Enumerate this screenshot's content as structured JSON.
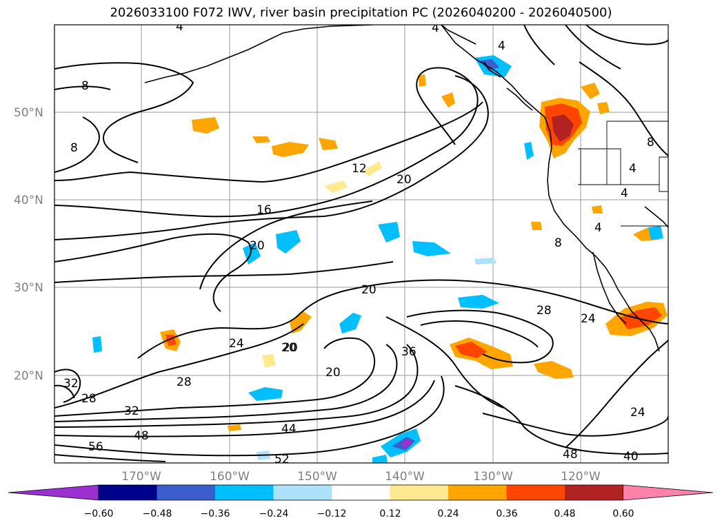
{
  "title": "2026033100 F072 IWV, river basin precipitation PC (2026040200 - 2026040500)",
  "lat_labels": [
    "50°N",
    "40°N",
    "30°N",
    "20°N"
  ],
  "lon_labels": [
    "170°W",
    "160°W",
    "150°W",
    "140°W",
    "130°W",
    "120°W"
  ],
  "colorbar": {
    "colors": [
      "#9b30d0",
      "#00008b",
      "#3a5fcd",
      "#00bfff",
      "#ade2fc",
      "#ffffff",
      "#ffea8f",
      "#ffa500",
      "#ff4500",
      "#b22222",
      "#ff82ab"
    ],
    "tick_labels": [
      "−0.60",
      "−0.48",
      "−0.36",
      "−0.24",
      "−0.12",
      "0.12",
      "0.24",
      "0.36",
      "0.48",
      "0.60"
    ]
  },
  "contour_labels": [
    "4",
    "4",
    "4",
    "8",
    "8",
    "8",
    "4",
    "4",
    "4",
    "12",
    "20",
    "16",
    "20",
    "20",
    "20",
    "20",
    "24",
    "28",
    "24",
    "28",
    "32",
    "28",
    "32",
    "48",
    "56",
    "44",
    "52",
    "20",
    "36",
    "48",
    "40",
    "24",
    "8"
  ]
}
